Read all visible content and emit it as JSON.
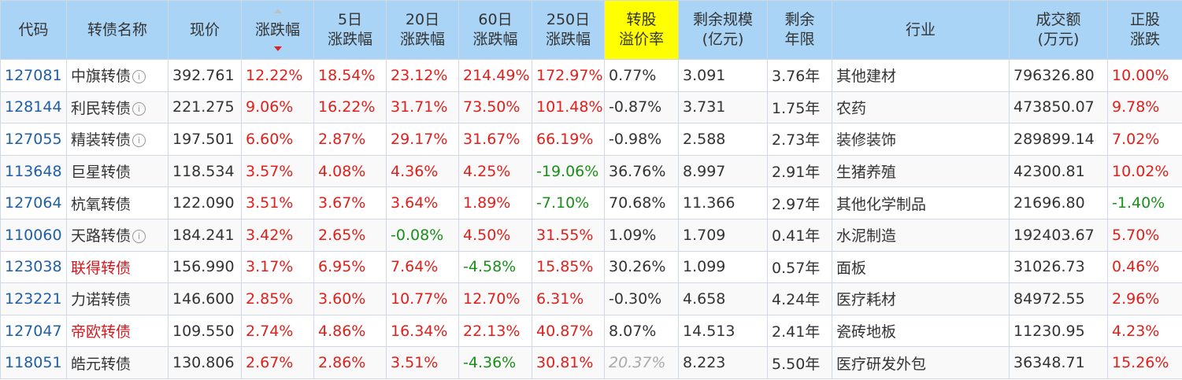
{
  "headers": {
    "code": "代码",
    "name": "转债名称",
    "price": "现价",
    "change": "涨跌幅",
    "d5": [
      "5日",
      "涨跌幅"
    ],
    "d20": [
      "20日",
      "涨跌幅"
    ],
    "d60": [
      "60日",
      "涨跌幅"
    ],
    "d250": [
      "250日",
      "涨跌幅"
    ],
    "premium": [
      "转股",
      "溢价率"
    ],
    "scale": [
      "剩余规模",
      "(亿元)"
    ],
    "years": [
      "剩余",
      "年限"
    ],
    "industry": "行业",
    "volume": [
      "成交额",
      "(万元)"
    ],
    "stock": [
      "正股",
      "涨跌"
    ]
  },
  "colors": {
    "header_bg": "#a9d4f5",
    "highlight": "#ffff00",
    "up": "#e0201b",
    "down": "#1a8f1a",
    "code": "#1f5fa6"
  },
  "rows": [
    {
      "code": "127081",
      "name": "中旗转债",
      "info": true,
      "name_red": false,
      "price": "392.761",
      "change": "12.22%",
      "d5": "18.54%",
      "d20": "23.12%",
      "d60": "214.49%",
      "d250": "172.97%",
      "premium": "0.77%",
      "scale": "3.091",
      "years": "3.76年",
      "industry": "其他建材",
      "volume": "796326.80",
      "stock": "10.00%"
    },
    {
      "code": "128144",
      "name": "利民转债",
      "info": true,
      "name_red": false,
      "price": "221.275",
      "change": "9.06%",
      "d5": "16.22%",
      "d20": "31.71%",
      "d60": "73.50%",
      "d250": "101.48%",
      "premium": "-0.87%",
      "scale": "3.731",
      "years": "1.75年",
      "industry": "农药",
      "volume": "473850.07",
      "stock": "9.78%"
    },
    {
      "code": "127055",
      "name": "精装转债",
      "info": true,
      "name_red": false,
      "price": "197.501",
      "change": "6.60%",
      "d5": "2.87%",
      "d20": "29.17%",
      "d60": "31.67%",
      "d250": "66.19%",
      "premium": "-0.98%",
      "scale": "2.588",
      "years": "2.73年",
      "industry": "装修装饰",
      "volume": "289899.14",
      "stock": "7.02%"
    },
    {
      "code": "113648",
      "name": "巨星转债",
      "info": false,
      "name_red": false,
      "price": "118.534",
      "change": "3.57%",
      "d5": "4.08%",
      "d20": "4.36%",
      "d60": "4.25%",
      "d250": "-19.06%",
      "premium": "36.76%",
      "scale": "8.997",
      "years": "2.91年",
      "industry": "生猪养殖",
      "volume": "42300.81",
      "stock": "10.02%"
    },
    {
      "code": "127064",
      "name": "杭氧转债",
      "info": false,
      "name_red": false,
      "price": "122.090",
      "change": "3.51%",
      "d5": "3.67%",
      "d20": "3.64%",
      "d60": "1.89%",
      "d250": "-7.10%",
      "premium": "70.68%",
      "scale": "11.366",
      "years": "2.97年",
      "industry": "其他化学制品",
      "volume": "21696.80",
      "stock": "-1.40%"
    },
    {
      "code": "110060",
      "name": "天路转债",
      "info": true,
      "name_red": false,
      "price": "184.241",
      "change": "3.42%",
      "d5": "2.65%",
      "d20": "-0.08%",
      "d60": "4.50%",
      "d250": "31.55%",
      "premium": "1.09%",
      "scale": "1.709",
      "years": "0.41年",
      "industry": "水泥制造",
      "volume": "192403.67",
      "stock": "5.70%"
    },
    {
      "code": "123038",
      "name": "联得转债",
      "info": false,
      "name_red": true,
      "price": "156.990",
      "change": "3.17%",
      "d5": "6.95%",
      "d20": "7.64%",
      "d60": "-4.58%",
      "d250": "15.85%",
      "premium": "30.26%",
      "scale": "1.099",
      "years": "0.57年",
      "industry": "面板",
      "volume": "31026.73",
      "stock": "0.46%"
    },
    {
      "code": "123221",
      "name": "力诺转债",
      "info": false,
      "name_red": false,
      "price": "146.600",
      "change": "2.85%",
      "d5": "3.60%",
      "d20": "10.77%",
      "d60": "12.70%",
      "d250": "6.31%",
      "premium": "-0.30%",
      "scale": "4.658",
      "years": "4.24年",
      "industry": "医疗耗材",
      "volume": "84972.55",
      "stock": "2.96%"
    },
    {
      "code": "127047",
      "name": "帝欧转债",
      "info": false,
      "name_red": true,
      "price": "109.550",
      "change": "2.74%",
      "d5": "4.86%",
      "d20": "16.34%",
      "d60": "22.13%",
      "d250": "40.87%",
      "premium": "8.07%",
      "scale": "14.513",
      "years": "2.41年",
      "industry": "瓷砖地板",
      "volume": "11230.95",
      "stock": "4.23%"
    },
    {
      "code": "118051",
      "name": "皓元转债",
      "info": false,
      "name_red": false,
      "price": "130.806",
      "change": "2.67%",
      "d5": "2.86%",
      "d20": "3.51%",
      "d60": "-4.36%",
      "d250": "30.81%",
      "premium": "20.37%",
      "premium_muted": true,
      "scale": "8.223",
      "years": "5.50年",
      "industry": "医疗研发外包",
      "volume": "36348.71",
      "stock": "15.26%"
    }
  ]
}
